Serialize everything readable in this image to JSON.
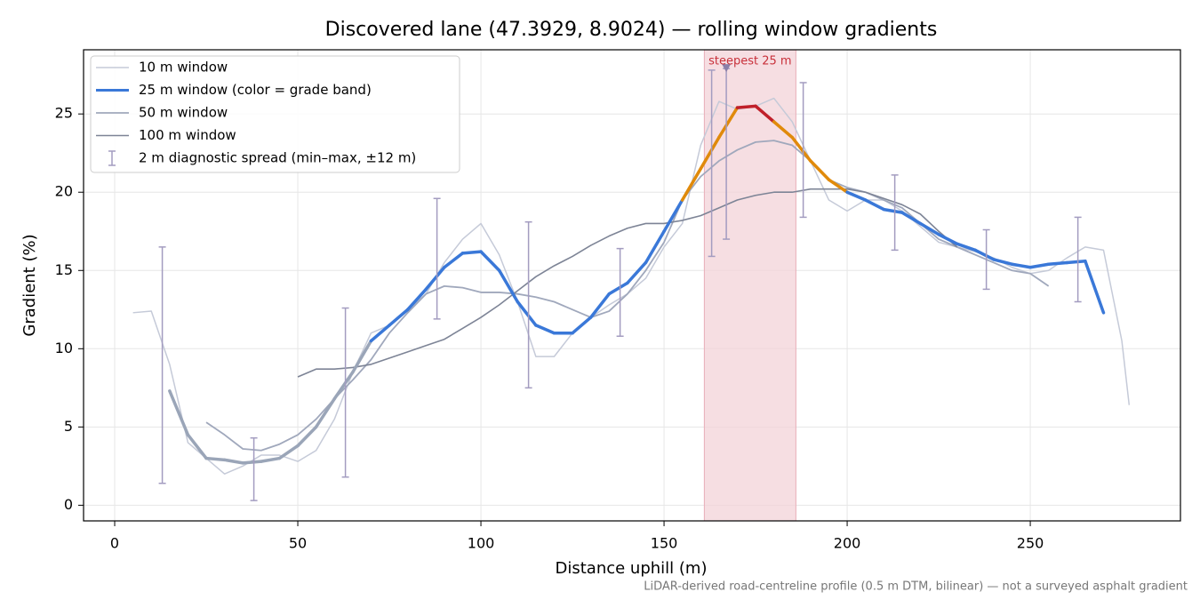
{
  "chart_data": {
    "type": "line",
    "title": "Discovered lane (47.3929, 8.9024) — rolling window gradients",
    "xlabel": "Distance uphill (m)",
    "ylabel": "Gradient (%)",
    "footnote": "LiDAR-derived road-centreline profile (0.5 m DTM, bilinear) — not a surveyed asphalt gradient",
    "x": [
      5,
      10,
      15,
      20,
      25,
      30,
      35,
      40,
      45,
      50,
      55,
      60,
      65,
      70,
      75,
      80,
      85,
      90,
      95,
      100,
      105,
      110,
      115,
      120,
      125,
      130,
      135,
      140,
      145,
      150,
      155,
      160,
      165,
      170,
      175,
      180,
      185,
      190,
      195,
      200,
      205,
      210,
      215,
      220,
      225,
      230,
      235,
      240,
      245,
      250,
      255,
      260,
      265,
      270,
      275,
      277
    ],
    "series": [
      {
        "name": "10 m window",
        "color": "#c5cad8",
        "values": [
          12.3,
          12.4,
          9.0,
          4.0,
          3.0,
          2.0,
          2.5,
          3.2,
          3.2,
          2.8,
          3.5,
          5.5,
          8.5,
          11.0,
          11.5,
          12.5,
          13.5,
          15.5,
          17.0,
          18.0,
          16.0,
          13.0,
          9.5,
          9.5,
          11.0,
          12.0,
          12.8,
          13.5,
          14.5,
          16.5,
          18.0,
          23.0,
          25.8,
          25.3,
          25.5,
          26.0,
          24.5,
          22.0,
          19.5,
          18.8,
          19.5,
          19.5,
          18.8,
          17.8,
          16.8,
          16.5,
          16.2,
          15.8,
          15.2,
          14.8,
          15.0,
          15.8,
          16.5,
          16.3,
          10.5,
          6.4
        ]
      },
      {
        "name": "25 m window (color = grade band)",
        "color": "#3a78d8",
        "grade_bands": [
          {
            "min": 0,
            "color": "#9aa5b8"
          },
          {
            "min": 10,
            "color": "#3a78d8"
          },
          {
            "min": 20,
            "color": "#e08a0b"
          },
          {
            "min": 24.5,
            "color": "#c0202a"
          }
        ],
        "values": [
          null,
          null,
          7.3,
          4.5,
          3.0,
          2.9,
          2.7,
          2.8,
          3.0,
          3.8,
          5.0,
          6.8,
          8.5,
          10.5,
          11.5,
          12.5,
          13.8,
          15.2,
          16.1,
          16.2,
          15.0,
          13.0,
          11.5,
          11.0,
          11.0,
          12.0,
          13.5,
          14.2,
          15.5,
          17.5,
          19.5,
          21.5,
          23.5,
          25.4,
          25.5,
          24.5,
          23.5,
          22.0,
          20.8,
          20.0,
          19.5,
          18.9,
          18.7,
          18.0,
          17.3,
          16.7,
          16.3,
          15.7,
          15.4,
          15.2,
          15.4,
          15.5,
          15.6,
          12.3,
          null,
          null
        ]
      },
      {
        "name": "50 m window",
        "color": "#a0a8bc",
        "values": [
          null,
          null,
          null,
          null,
          5.3,
          4.5,
          3.6,
          3.5,
          3.9,
          4.5,
          5.5,
          6.8,
          8.0,
          9.3,
          11.0,
          12.3,
          13.5,
          14.0,
          13.9,
          13.6,
          13.6,
          13.5,
          13.3,
          13.0,
          12.5,
          12.0,
          12.4,
          13.5,
          15.0,
          16.8,
          19.5,
          21.0,
          22.0,
          22.7,
          23.2,
          23.3,
          23.0,
          22.0,
          20.8,
          20.3,
          20.0,
          19.5,
          19.0,
          18.0,
          17.0,
          16.5,
          16.0,
          15.5,
          15.0,
          14.8,
          14.0,
          null,
          null,
          null,
          null,
          null
        ]
      },
      {
        "name": "100 m window",
        "color": "#7d8496",
        "values": [
          null,
          null,
          null,
          null,
          null,
          null,
          null,
          null,
          null,
          8.2,
          8.7,
          8.7,
          8.8,
          9.0,
          9.4,
          9.8,
          10.2,
          10.6,
          11.3,
          12.0,
          12.8,
          13.7,
          14.6,
          15.3,
          15.9,
          16.6,
          17.2,
          17.7,
          18.0,
          18.0,
          18.2,
          18.5,
          19.0,
          19.5,
          19.8,
          20.0,
          20.0,
          20.2,
          20.2,
          20.2,
          20.0,
          19.6,
          19.2,
          18.6,
          17.5,
          16.5,
          null,
          null,
          null,
          null,
          null,
          null,
          null,
          null,
          null,
          null
        ]
      }
    ],
    "errorbars": {
      "name": "2 m diagnostic spread (min–max, ±12 m)",
      "color": "#a39cc0",
      "x": [
        13,
        38,
        63,
        88,
        113,
        138,
        163,
        167,
        188,
        213,
        238,
        263
      ],
      "low": [
        1.4,
        0.3,
        1.8,
        11.9,
        7.5,
        10.8,
        15.9,
        17.0,
        18.4,
        16.3,
        13.8,
        13.0
      ],
      "high": [
        16.5,
        4.3,
        12.6,
        19.6,
        18.1,
        16.4,
        27.8,
        27.9,
        27.0,
        21.1,
        17.6,
        18.4
      ]
    },
    "highlight": {
      "x": [
        161,
        186
      ],
      "color": "#f3d3d8"
    },
    "annotation": {
      "text": "steepest 25 m",
      "x": 167,
      "y": 27.9,
      "color": "#c8303a"
    },
    "xlim": [
      -8.5,
      291
    ],
    "ylim": [
      -1.0,
      29.1
    ],
    "xticks": [
      0,
      50,
      100,
      150,
      200,
      250
    ],
    "yticks": [
      0,
      5,
      10,
      15,
      20,
      25
    ],
    "grid": true,
    "legend": "upper left"
  }
}
